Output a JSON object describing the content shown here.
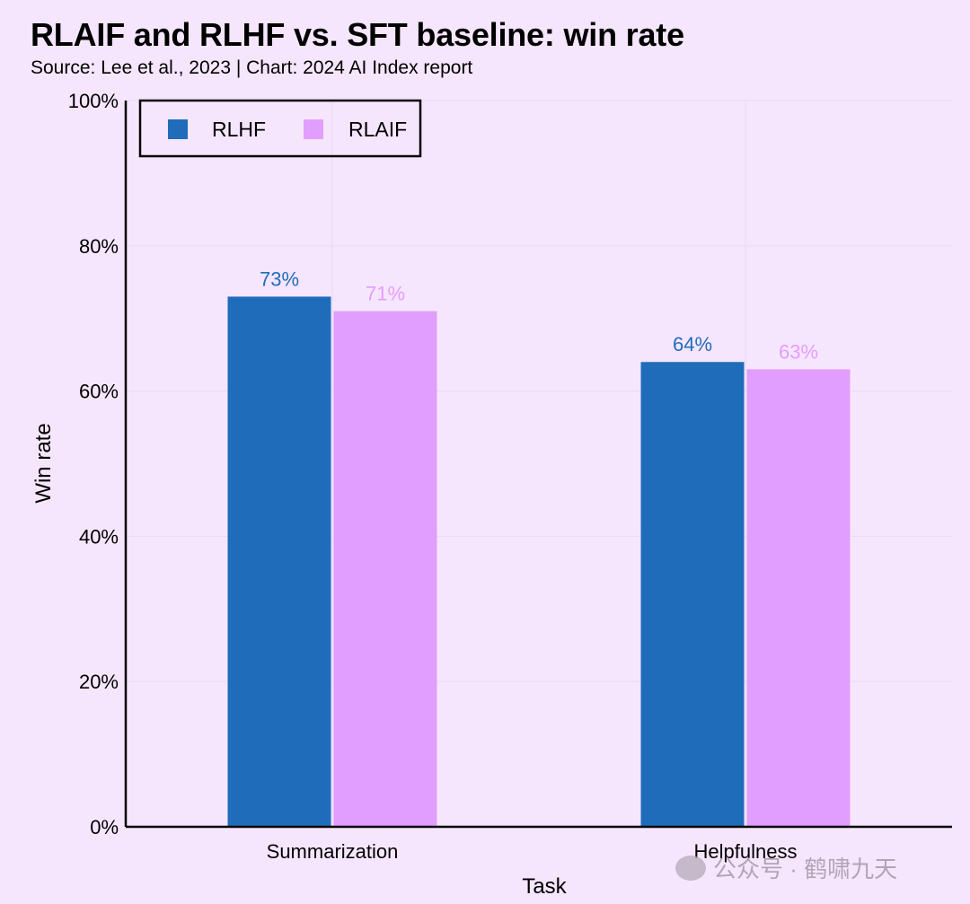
{
  "title": "RLAIF and RLHF vs. SFT baseline: win rate",
  "subtitle": "Source: Lee et al., 2023 | Chart: 2024 AI Index report",
  "watermark": "公众号 · 鹤啸九天",
  "chart_data": {
    "type": "bar",
    "title": "RLAIF and RLHF vs. SFT baseline: win rate",
    "xlabel": "Task",
    "ylabel": "Win rate",
    "categories": [
      "Summarization",
      "Helpfulness"
    ],
    "series": [
      {
        "name": "RLHF",
        "values": [
          73,
          64
        ],
        "labels": [
          "73%",
          "64%"
        ],
        "color": "#1f6dba"
      },
      {
        "name": "RLAIF",
        "values": [
          71,
          63
        ],
        "labels": [
          "71%",
          "63%"
        ],
        "color": "#e29efe"
      }
    ],
    "ylim": [
      0,
      100
    ],
    "yticks": [
      "0%",
      "20%",
      "40%",
      "60%",
      "80%",
      "100%"
    ],
    "grid": true,
    "legend_position": "top-left"
  }
}
